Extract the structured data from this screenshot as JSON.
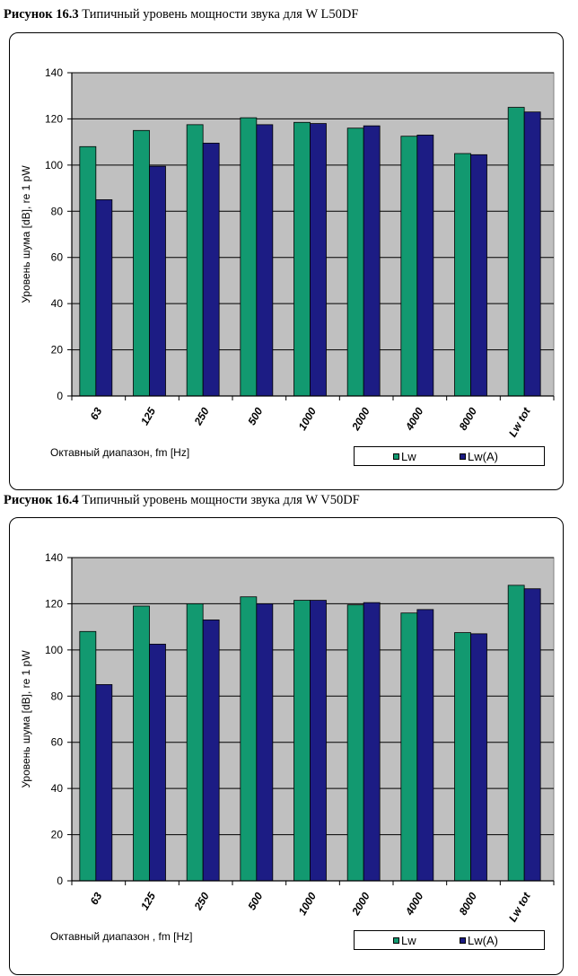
{
  "figures": [
    {
      "caption_number": "Рисунок 16.3",
      "caption_text": "Типичный уровень мощности звука для W L50DF"
    },
    {
      "caption_number": "Рисунок 16.4",
      "caption_text": "Типичный уровень мощности звука для W V50DF"
    }
  ],
  "colors": {
    "lw": "#129970",
    "lwa": "#1c1c84",
    "plot_bg": "#c0c0c0"
  },
  "chart_data": [
    {
      "type": "bar",
      "title": "Рисунок 16.3 Типичный уровень мощности звука для W L50DF",
      "categories": [
        "63",
        "125",
        "250",
        "500",
        "1000",
        "2000",
        "4000",
        "8000",
        "Lw tot"
      ],
      "series": [
        {
          "name": "Lw",
          "values": [
            108,
            115,
            117.5,
            120.5,
            118.5,
            116,
            112.5,
            105,
            125
          ]
        },
        {
          "name": "Lw(A)",
          "values": [
            85,
            99.5,
            109.5,
            117.5,
            118,
            117,
            113,
            104.5,
            123
          ]
        }
      ],
      "xlabel": "Октавный диапазон,  fm [Hz]",
      "ylabel": "Уровень шума [dB],   re 1 pW",
      "ylim": [
        0,
        140
      ],
      "yticks": [
        "0",
        "20",
        "40",
        "60",
        "80",
        "100",
        "120",
        "140"
      ],
      "grid": true,
      "legend_position": "bottom-right"
    },
    {
      "type": "bar",
      "title": "Рисунок 16.4 Типичный уровень мощности звука для W V50DF",
      "categories": [
        "63",
        "125",
        "250",
        "500",
        "1000",
        "2000",
        "4000",
        "8000",
        "Lw tot"
      ],
      "series": [
        {
          "name": "Lw",
          "values": [
            108,
            119,
            120,
            123,
            121.5,
            119.5,
            116,
            107.5,
            128
          ]
        },
        {
          "name": "Lw(A)",
          "values": [
            85,
            102.5,
            113,
            120,
            121.5,
            120.5,
            117.5,
            107,
            126.5
          ]
        }
      ],
      "xlabel": "Октавный диапазон ,  fm [Hz]",
      "ylabel": "Уровень шума  [dB],   re 1 pW",
      "ylim": [
        0,
        140
      ],
      "yticks": [
        "0",
        "20",
        "40",
        "60",
        "80",
        "100",
        "120",
        "140"
      ],
      "grid": true,
      "legend_position": "bottom-right"
    }
  ]
}
